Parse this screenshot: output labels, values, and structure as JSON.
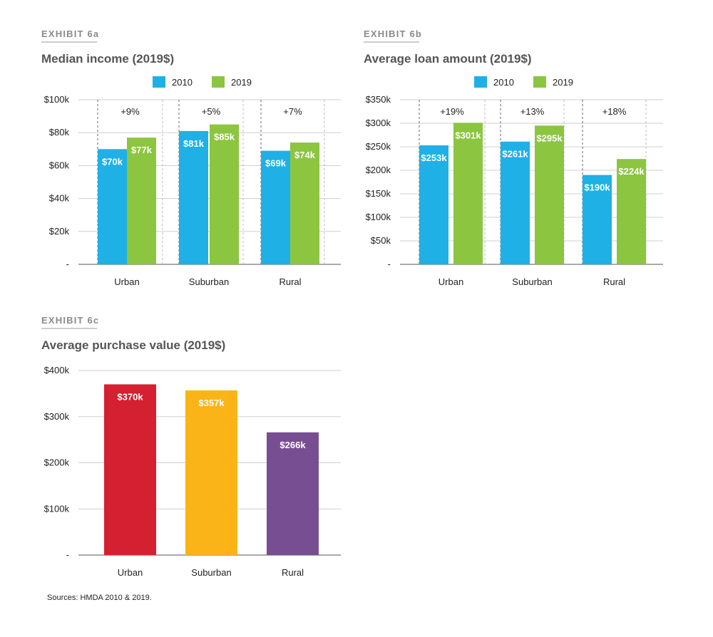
{
  "chart_data": [
    {
      "type": "bar",
      "exhibit": "EXHIBIT 6a",
      "title": "Median income (2019$)",
      "categories": [
        "Urban",
        "Suburban",
        "Rural"
      ],
      "series": [
        {
          "name": "2010",
          "color": "#1fb0e6",
          "values": [
            70,
            81,
            69
          ],
          "labels": [
            "$70k",
            "$81k",
            "$69k"
          ]
        },
        {
          "name": "2019",
          "color": "#8cc540",
          "values": [
            77,
            85,
            74
          ],
          "labels": [
            "$77k",
            "$85k",
            "$74k"
          ]
        }
      ],
      "annotations": [
        "+9%",
        "+5%",
        "+7%"
      ],
      "ylim": [
        0,
        100
      ],
      "yticks": [
        0,
        20,
        40,
        60,
        80,
        100
      ],
      "ytick_labels": [
        "-",
        "$20k",
        "$40k",
        "$60k",
        "$80k",
        "$100k"
      ],
      "legend_position": "top",
      "grid": true
    },
    {
      "type": "bar",
      "exhibit": "EXHIBIT 6b",
      "title": "Average loan amount (2019$)",
      "categories": [
        "Urban",
        "Suburban",
        "Rural"
      ],
      "series": [
        {
          "name": "2010",
          "color": "#1fb0e6",
          "values": [
            253,
            261,
            190
          ],
          "labels": [
            "$253k",
            "$261k",
            "$190k"
          ]
        },
        {
          "name": "2019",
          "color": "#8cc540",
          "values": [
            301,
            295,
            224
          ],
          "labels": [
            "$301k",
            "$295k",
            "$224k"
          ]
        }
      ],
      "annotations": [
        "+19%",
        "+13%",
        "+18%"
      ],
      "ylim": [
        0,
        350
      ],
      "yticks": [
        0,
        50,
        100,
        150,
        200,
        250,
        300,
        350
      ],
      "ytick_labels": [
        "-",
        "$50k",
        "$100k",
        "$150k",
        "$200k",
        "$250k",
        "$300k",
        "$350k"
      ],
      "legend_position": "top",
      "grid": true
    },
    {
      "type": "bar",
      "exhibit": "EXHIBIT 6c",
      "title": "Average purchase value (2019$)",
      "categories": [
        "Urban",
        "Suburban",
        "Rural"
      ],
      "series": [
        {
          "name": "",
          "colors": [
            "#d42030",
            "#fbb417",
            "#784e93"
          ],
          "values": [
            370,
            357,
            266
          ],
          "labels": [
            "$370k",
            "$357k",
            "$266k"
          ]
        }
      ],
      "ylim": [
        0,
        400
      ],
      "yticks": [
        0,
        100,
        200,
        300,
        400
      ],
      "ytick_labels": [
        "-",
        "$100k",
        "$200k",
        "$300k",
        "$400k"
      ],
      "grid": true
    }
  ],
  "source": "Sources: HMDA 2010 & 2019."
}
